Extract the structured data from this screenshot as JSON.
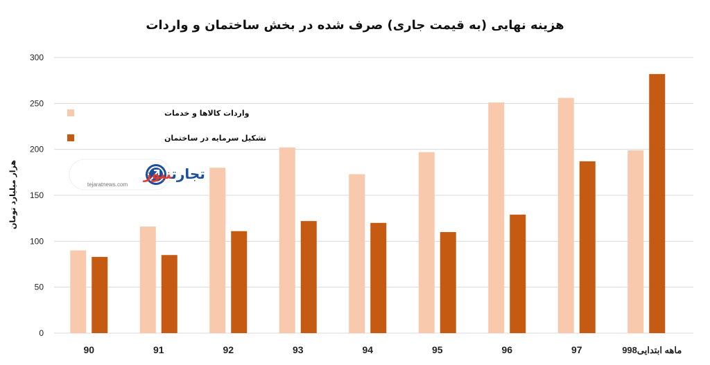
{
  "chart_data": {
    "type": "bar",
    "title": "هزینه نهایی (به قیمت جاری) صرف شده در بخش ساختمان و واردات",
    "ylabel": "هزار میلیارد تومان",
    "xlabel": "",
    "ylim": [
      0,
      300
    ],
    "yticks": [
      0,
      50,
      100,
      150,
      200,
      250,
      300
    ],
    "grid": true,
    "legend_position": "top-left",
    "categories": [
      "90",
      "91",
      "92",
      "93",
      "94",
      "95",
      "96",
      "97",
      "9ماهه ابتدایی98"
    ],
    "series": [
      {
        "name": "واردات کالاها و خدمات",
        "color": "#f8c9ad",
        "values": [
          90,
          116,
          180,
          202,
          173,
          197,
          251,
          256,
          199
        ]
      },
      {
        "name": "تشکیل سرمایه در ساختمان",
        "color": "#c55a13",
        "values": [
          83,
          85,
          111,
          122,
          120,
          110,
          129,
          187,
          282
        ]
      }
    ]
  },
  "logo": {
    "name": "تجارت نیوز",
    "part1": "تجارت",
    "part2": "نیوز",
    "domain": "tejaratnews.com"
  }
}
